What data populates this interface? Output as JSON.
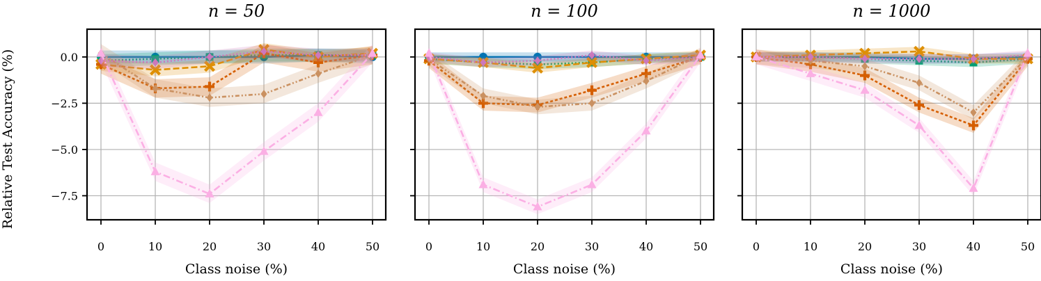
{
  "figure": {
    "ylabel": "Relative Test Accuracy (%)",
    "panel_titles": [
      "n = 50",
      "n = 100",
      "n = 1000"
    ]
  },
  "chart_data": [
    {
      "type": "line",
      "title": "n = 50",
      "xlabel": "Class noise (%)",
      "ylabel": "Relative Test Accuracy (%)",
      "x": [
        0,
        10,
        20,
        30,
        40,
        50
      ],
      "xticks": [
        "0",
        "10",
        "20",
        "30",
        "40",
        "50"
      ],
      "yticks": [
        "0.0",
        "−2.5",
        "−5.0",
        "−7.5"
      ],
      "ylim": [
        -8.8,
        1.5
      ],
      "grid": true,
      "series": [
        {
          "name": "blue",
          "color": "#0173b2",
          "dash": "",
          "marker": "circle",
          "values": [
            0.0,
            0.0,
            0.0,
            0.0,
            0.1,
            0.0
          ]
        },
        {
          "name": "green",
          "color": "#029e73",
          "dash": "2,3",
          "marker": "square",
          "values": [
            -0.2,
            -0.1,
            0.0,
            0.1,
            0.1,
            0.1
          ]
        },
        {
          "name": "orange",
          "color": "#de8f05",
          "dash": "9,4",
          "marker": "x",
          "values": [
            -0.4,
            -0.7,
            -0.5,
            0.4,
            0.0,
            0.2
          ]
        },
        {
          "name": "vermillion",
          "color": "#d55e00",
          "dash": "4,3",
          "marker": "plus",
          "values": [
            -0.4,
            -1.7,
            -1.6,
            0.2,
            -0.3,
            0.1
          ]
        },
        {
          "name": "tan",
          "color": "#ca9161",
          "dash": "6,3,2,3,2,3",
          "marker": "diamond",
          "values": [
            0.2,
            -1.7,
            -2.2,
            -2.0,
            -0.9,
            0.1
          ]
        },
        {
          "name": "purple",
          "color": "#cc78bc",
          "dash": "2,3",
          "marker": "diamond",
          "values": [
            -0.2,
            -0.3,
            0.0,
            0.3,
            0.1,
            0.1
          ]
        },
        {
          "name": "pink",
          "color": "#fbafe4",
          "dash": "10,4,2,4",
          "marker": "triangle",
          "values": [
            0.2,
            -6.2,
            -7.4,
            -5.1,
            -3.0,
            0.2
          ]
        }
      ]
    },
    {
      "type": "line",
      "title": "n = 100",
      "xlabel": "Class noise (%)",
      "ylabel": "",
      "x": [
        0,
        10,
        20,
        30,
        40,
        50
      ],
      "xticks": [
        "0",
        "10",
        "20",
        "30",
        "40",
        "50"
      ],
      "yticks": [],
      "ylim": [
        -8.8,
        1.5
      ],
      "grid": true,
      "series": [
        {
          "name": "blue",
          "color": "#0173b2",
          "dash": "",
          "marker": "circle",
          "values": [
            0.0,
            0.0,
            0.0,
            0.0,
            0.0,
            0.0
          ]
        },
        {
          "name": "green",
          "color": "#029e73",
          "dash": "2,3",
          "marker": "square",
          "values": [
            -0.1,
            -0.3,
            -0.4,
            -0.3,
            -0.1,
            0.0
          ]
        },
        {
          "name": "orange",
          "color": "#de8f05",
          "dash": "9,4",
          "marker": "x",
          "values": [
            -0.1,
            -0.3,
            -0.6,
            -0.3,
            -0.1,
            0.1
          ]
        },
        {
          "name": "vermillion",
          "color": "#d55e00",
          "dash": "4,3",
          "marker": "plus",
          "values": [
            -0.2,
            -2.5,
            -2.6,
            -1.8,
            -0.9,
            0.0
          ]
        },
        {
          "name": "tan",
          "color": "#ca9161",
          "dash": "6,3,2,3,2,3",
          "marker": "diamond",
          "values": [
            -0.1,
            -2.1,
            -2.7,
            -2.5,
            -1.3,
            0.1
          ]
        },
        {
          "name": "purple",
          "color": "#cc78bc",
          "dash": "2,3",
          "marker": "diamond",
          "values": [
            0.0,
            -0.3,
            -0.2,
            0.1,
            -0.2,
            0.0
          ]
        },
        {
          "name": "pink",
          "color": "#fbafe4",
          "dash": "10,4,2,4",
          "marker": "triangle",
          "values": [
            0.2,
            -6.9,
            -8.1,
            -6.9,
            -4.0,
            0.1
          ]
        }
      ]
    },
    {
      "type": "line",
      "title": "n = 1000",
      "xlabel": "Class noise (%)",
      "ylabel": "",
      "x": [
        0,
        10,
        20,
        30,
        40,
        50
      ],
      "xticks": [
        "0",
        "10",
        "20",
        "30",
        "40",
        "50"
      ],
      "yticks": [],
      "ylim": [
        -8.8,
        1.5
      ],
      "grid": true,
      "series": [
        {
          "name": "blue",
          "color": "#0173b2",
          "dash": "",
          "marker": "circle",
          "values": [
            0.0,
            0.0,
            0.0,
            -0.1,
            -0.1,
            0.0
          ]
        },
        {
          "name": "green",
          "color": "#029e73",
          "dash": "2,3",
          "marker": "square",
          "values": [
            0.0,
            0.0,
            -0.1,
            -0.2,
            -0.3,
            -0.1
          ]
        },
        {
          "name": "orange",
          "color": "#de8f05",
          "dash": "9,4",
          "marker": "x",
          "values": [
            0.0,
            0.1,
            0.2,
            0.3,
            -0.1,
            -0.1
          ]
        },
        {
          "name": "vermillion",
          "color": "#d55e00",
          "dash": "4,3",
          "marker": "plus",
          "values": [
            0.0,
            -0.4,
            -1.0,
            -2.6,
            -3.7,
            -0.1
          ]
        },
        {
          "name": "tan",
          "color": "#ca9161",
          "dash": "6,3,2,3,2,3",
          "marker": "diamond",
          "values": [
            0.0,
            -0.2,
            -0.5,
            -1.4,
            -3.0,
            0.0
          ]
        },
        {
          "name": "purple",
          "color": "#cc78bc",
          "dash": "2,3",
          "marker": "diamond",
          "values": [
            0.0,
            0.0,
            -0.1,
            -0.1,
            -0.1,
            0.1
          ]
        },
        {
          "name": "pink",
          "color": "#fbafe4",
          "dash": "10,4,2,4",
          "marker": "triangle",
          "values": [
            0.0,
            -0.9,
            -1.8,
            -3.7,
            -7.1,
            0.2
          ]
        }
      ]
    }
  ]
}
